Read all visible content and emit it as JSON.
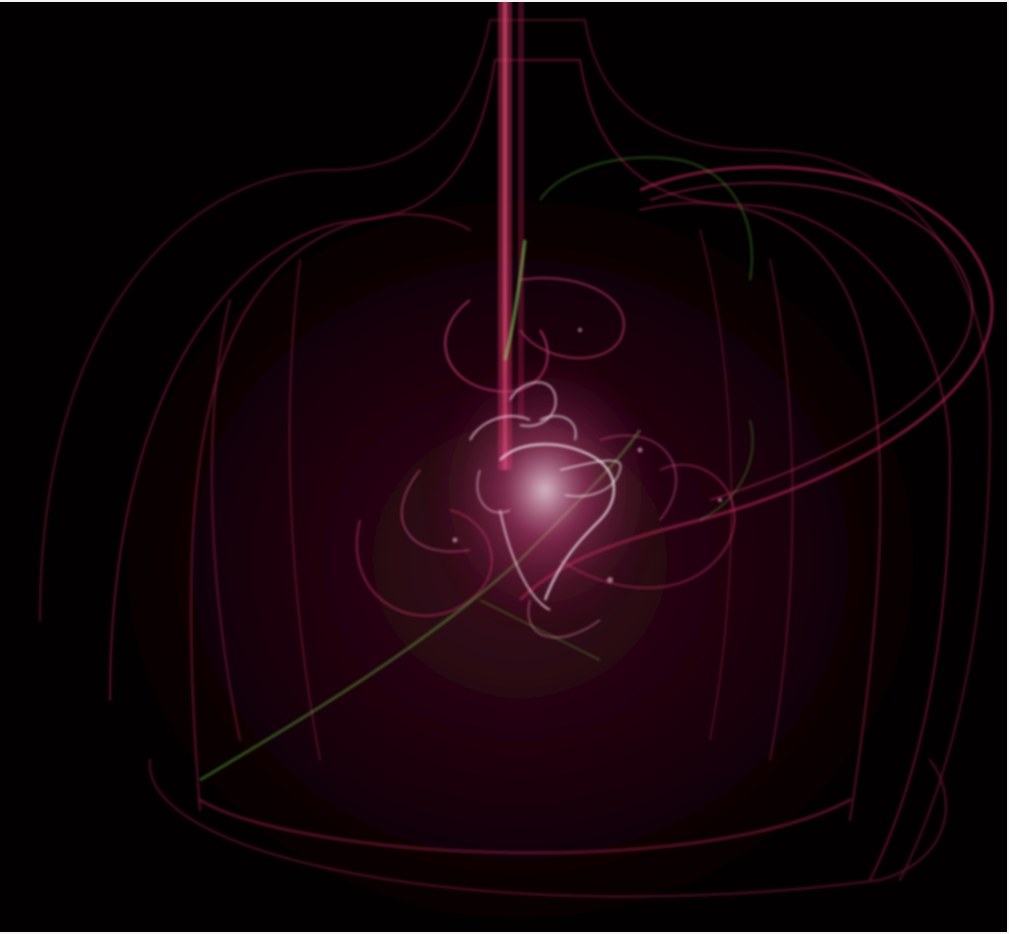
{
  "image": {
    "subject": "fractal-flame",
    "background_color": "#020001",
    "palette": {
      "primary": "#c2185b",
      "secondary": "#8a1a3a",
      "accent_green": "#6fcf4a",
      "highlight": "#f3e6ee"
    }
  }
}
